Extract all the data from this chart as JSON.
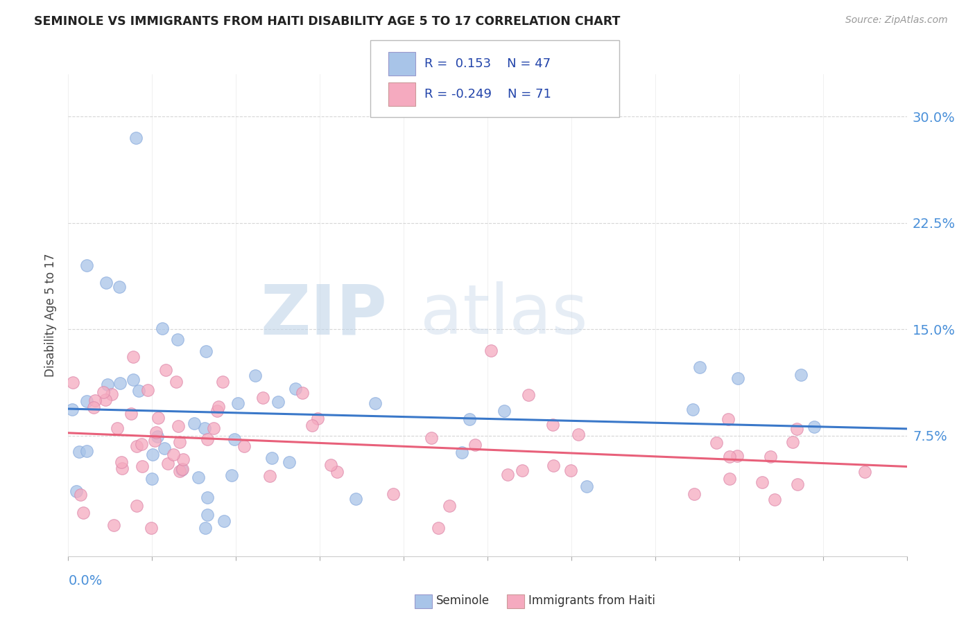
{
  "title": "SEMINOLE VS IMMIGRANTS FROM HAITI DISABILITY AGE 5 TO 17 CORRELATION CHART",
  "source": "Source: ZipAtlas.com",
  "ylabel": "Disability Age 5 to 17",
  "ytick_labels": [
    "7.5%",
    "15.0%",
    "22.5%",
    "30.0%"
  ],
  "ytick_values": [
    0.075,
    0.15,
    0.225,
    0.3
  ],
  "xlim": [
    0.0,
    0.3
  ],
  "ylim": [
    -0.01,
    0.33
  ],
  "series1_name": "Seminole",
  "series2_name": "Immigrants from Haiti",
  "series1_color": "#a8c4e8",
  "series2_color": "#f5aabf",
  "trend1_color": "#3a78c9",
  "trend2_color": "#e8607a",
  "background_color": "#ffffff",
  "grid_color": "#cccccc",
  "title_color": "#222222",
  "source_color": "#999999",
  "axis_label_color": "#4a90d9",
  "legend_text_color": "#2244aa",
  "watermark_zip_color": "#ccdcee",
  "watermark_atlas_color": "#c8d8e8",
  "r1": "0.153",
  "n1": "47",
  "r2": "-0.249",
  "n2": "71"
}
